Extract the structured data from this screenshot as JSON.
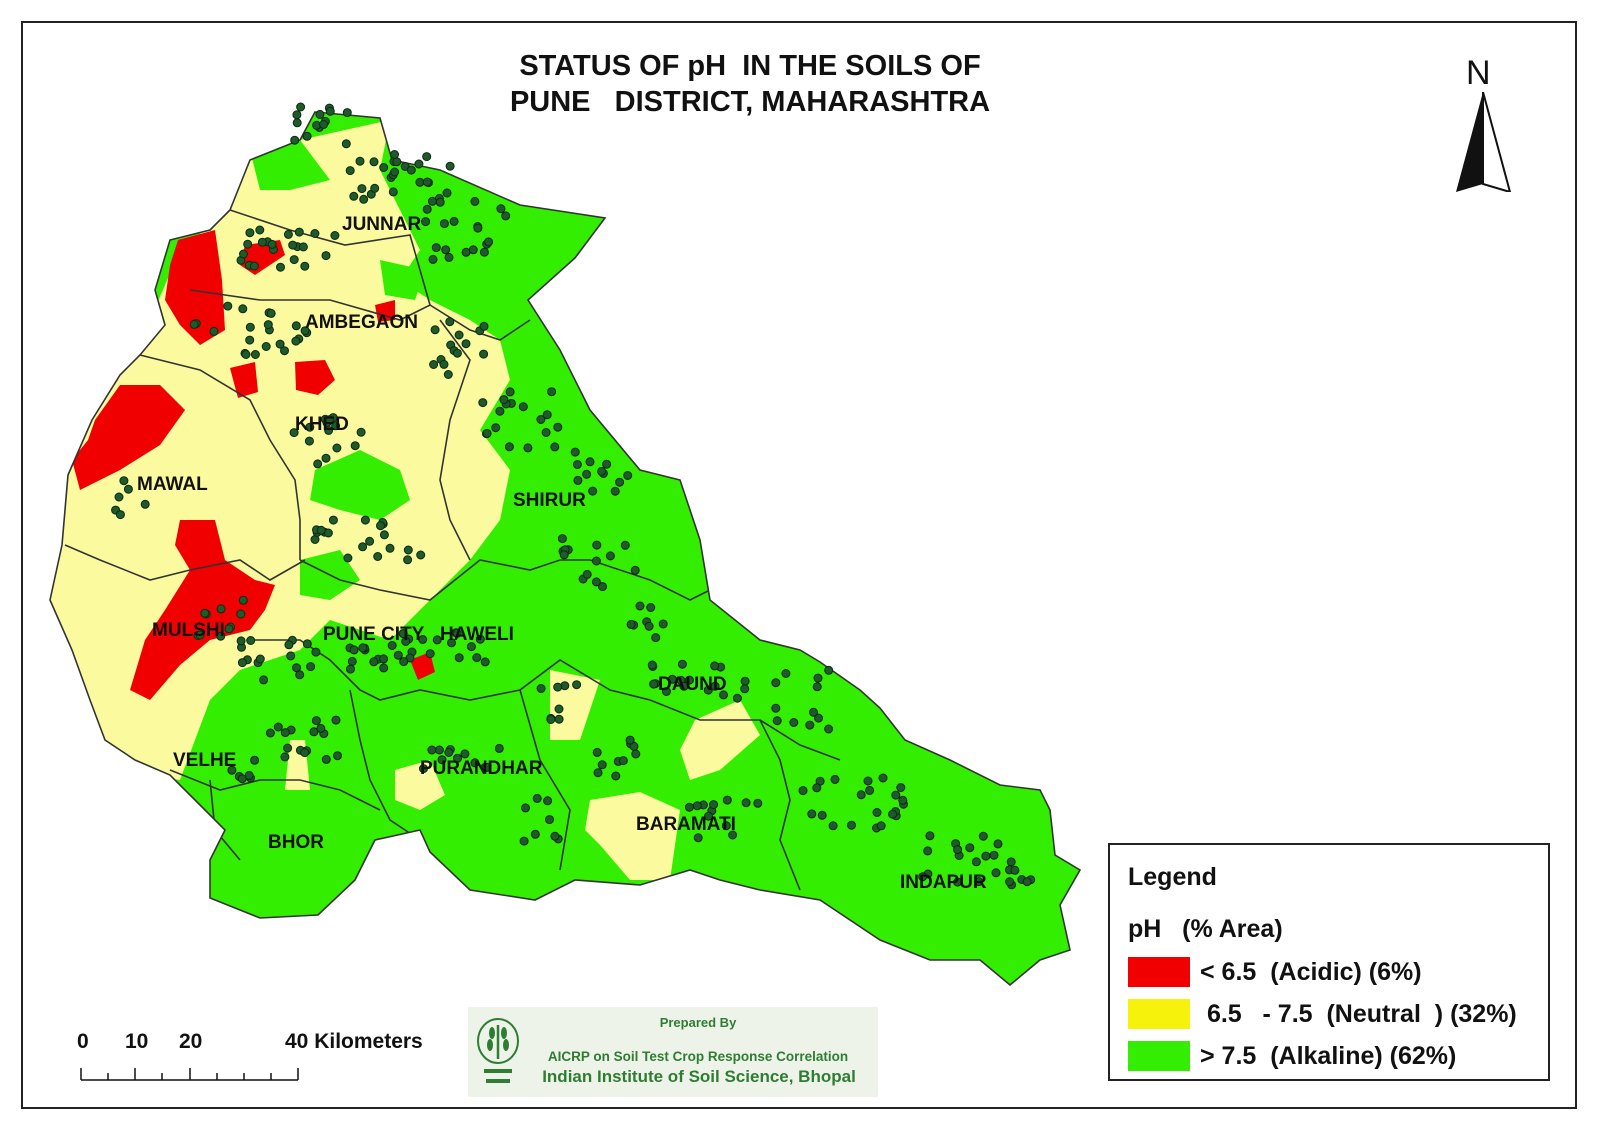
{
  "title": "STATUS OF pH  IN THE SOILS OF\nPUNE   DISTRICT, MAHARASHTRA",
  "north_label": "N",
  "colors": {
    "acidic": "#f00000",
    "neutral": "#fbfa9e",
    "alkaline": "#33ee00",
    "sample_point": "#1e5a2a",
    "boundary": "#333333"
  },
  "tehsils": [
    {
      "name": "JUNNAR"
    },
    {
      "name": "AMBEGAON"
    },
    {
      "name": "KHED"
    },
    {
      "name": "MAWAL"
    },
    {
      "name": "SHIRUR"
    },
    {
      "name": "MULSHI"
    },
    {
      "name": "PUNE CITY"
    },
    {
      "name": "HAWELI"
    },
    {
      "name": "DAUND"
    },
    {
      "name": "VELHE"
    },
    {
      "name": "PURANDHAR"
    },
    {
      "name": "BHOR"
    },
    {
      "name": "BARAMATI"
    },
    {
      "name": "INDAPUR"
    }
  ],
  "legend": {
    "title": "Legend",
    "subtitle": "pH   (% Area)",
    "items": [
      {
        "label": "< 6.5  (Acidic) (6%)",
        "color": "#f00000",
        "percent": 6
      },
      {
        "label": " 6.5   - 7.5  (Neutral  ) (32%)",
        "color": "#fbfa9e",
        "percent": 32
      },
      {
        "label": "> 7.5  (Alkaline) (62%)",
        "color": "#33ee00",
        "percent": 62
      }
    ]
  },
  "scale_bar": {
    "ticks": [
      "0",
      "10",
      "20",
      "40 Kilometers"
    ],
    "unit": "Kilometers"
  },
  "credit": {
    "prepared_by": "Prepared By",
    "program": "AICRP on Soil Test Crop Response Correlation",
    "institute": "Indian Institute of Soil Science, Bhopal"
  }
}
